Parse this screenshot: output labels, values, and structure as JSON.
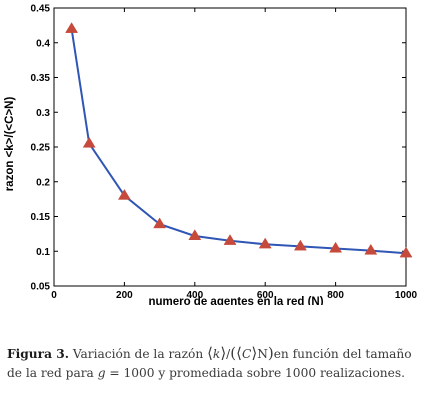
{
  "chart_data": {
    "type": "line",
    "xlabel": "numero de agentes en la red (N)",
    "ylabel": "razon <k>/(<C>N)",
    "xlim": [
      0,
      1000
    ],
    "ylim": [
      0.05,
      0.45
    ],
    "xticks": [
      "0",
      "200",
      "400",
      "600",
      "800",
      "1000"
    ],
    "xtick_values": [
      0,
      200,
      400,
      600,
      800,
      1000
    ],
    "yticks": [
      "0.05",
      "0.1",
      "0.15",
      "0.2",
      "0.25",
      "0.3",
      "0.35",
      "0.4",
      "0.45"
    ],
    "ytick_values": [
      0.05,
      0.1,
      0.15,
      0.2,
      0.25,
      0.3,
      0.35,
      0.4,
      0.45
    ],
    "grid": false,
    "series": [
      {
        "x": [
          50,
          100,
          200,
          300,
          400,
          500,
          600,
          700,
          800,
          900,
          1000
        ],
        "y": [
          0.42,
          0.255,
          0.18,
          0.139,
          0.122,
          0.115,
          0.11,
          0.107,
          0.104,
          0.101,
          0.097
        ],
        "line_color": "#2f55b5",
        "marker": "triangle",
        "marker_color": "#c64a3c"
      }
    ]
  },
  "caption": {
    "label": "Figura 3.",
    "text_1": " Variación de la razón ",
    "k": "k",
    "slash": "/",
    "C": "C",
    "N": "N",
    "text_2": "en función del tamaño de la red para ",
    "g": "g",
    "text_3": " = 1000 y promediada sobre 1000 realizaciones."
  }
}
